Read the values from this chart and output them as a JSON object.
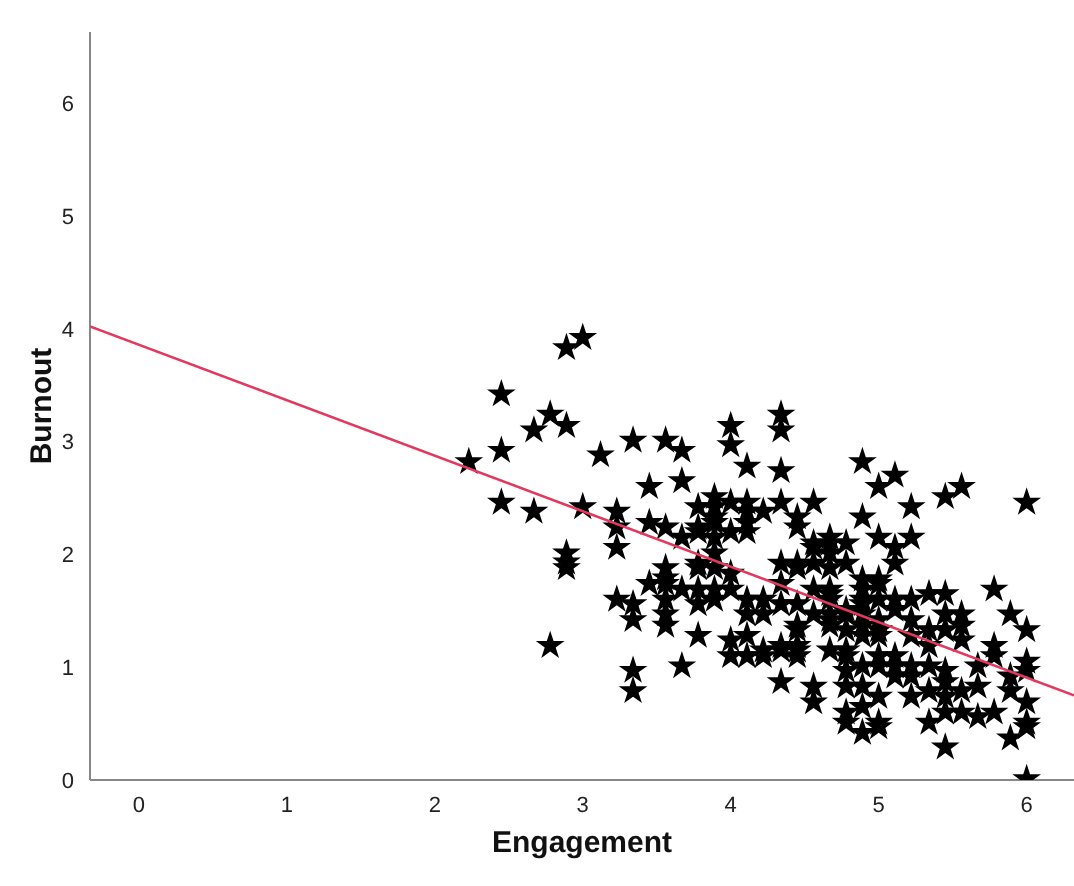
{
  "chart_data": {
    "type": "scatter",
    "xlabel": "Engagement",
    "ylabel": "Burnout",
    "xlim": [
      -0.33,
      6.32
    ],
    "ylim": [
      0,
      6.63
    ],
    "xticks": [
      0,
      1,
      2,
      3,
      4,
      5,
      6
    ],
    "yticks": [
      0,
      1,
      2,
      3,
      4,
      5,
      6
    ],
    "grid": false,
    "legend": false,
    "marker": "star",
    "series": [
      {
        "color": "#000000",
        "x": [
          2.23,
          2.45,
          2.45,
          2.45,
          2.67,
          2.67,
          2.78,
          2.78,
          2.89,
          2.89,
          2.89,
          2.89,
          2.89,
          3.0,
          3.0,
          3.12,
          3.23,
          3.23,
          3.23,
          3.23,
          3.34,
          3.34,
          3.34,
          3.34,
          3.34,
          3.45,
          3.45,
          3.45,
          3.56,
          3.56,
          3.56,
          3.56,
          3.56,
          3.56,
          3.56,
          3.56,
          3.67,
          3.67,
          3.67,
          3.67,
          3.67,
          3.78,
          3.78,
          3.78,
          3.78,
          3.78,
          3.78,
          3.78,
          3.78,
          3.89,
          3.89,
          3.89,
          3.89,
          3.89,
          3.89,
          3.89,
          3.89,
          3.89,
          4.0,
          4.0,
          4.0,
          4.0,
          4.0,
          4.0,
          4.0,
          4.0,
          4.11,
          4.11,
          4.11,
          4.11,
          4.11,
          4.11,
          4.11,
          4.11,
          4.11,
          4.22,
          4.22,
          4.22,
          4.22,
          4.22,
          4.34,
          4.34,
          4.34,
          4.34,
          4.34,
          4.34,
          4.34,
          4.34,
          4.34,
          4.34,
          4.45,
          4.45,
          4.45,
          4.45,
          4.45,
          4.45,
          4.45,
          4.45,
          4.45,
          4.45,
          4.56,
          4.56,
          4.56,
          4.56,
          4.56,
          4.56,
          4.56,
          4.56,
          4.67,
          4.67,
          4.67,
          4.67,
          4.67,
          4.67,
          4.67,
          4.67,
          4.67,
          4.67,
          4.67,
          4.78,
          4.78,
          4.78,
          4.78,
          4.78,
          4.78,
          4.78,
          4.78,
          4.78,
          4.78,
          4.78,
          4.89,
          4.89,
          4.89,
          4.89,
          4.89,
          4.89,
          4.89,
          4.89,
          4.89,
          4.89,
          4.89,
          4.89,
          4.89,
          5.0,
          5.0,
          5.0,
          5.0,
          5.0,
          5.0,
          5.0,
          5.0,
          5.0,
          5.0,
          5.0,
          5.0,
          5.0,
          5.11,
          5.11,
          5.11,
          5.11,
          5.11,
          5.11,
          5.11,
          5.11,
          5.22,
          5.22,
          5.22,
          5.22,
          5.22,
          5.22,
          5.22,
          5.22,
          5.34,
          5.34,
          5.34,
          5.34,
          5.34,
          5.34,
          5.45,
          5.45,
          5.45,
          5.45,
          5.45,
          5.45,
          5.45,
          5.45,
          5.45,
          5.56,
          5.56,
          5.56,
          5.56,
          5.56,
          5.56,
          5.67,
          5.67,
          5.67,
          5.78,
          5.78,
          5.78,
          5.78,
          5.89,
          5.89,
          5.89,
          5.89,
          6.0,
          6.0,
          6.0,
          6.0,
          6.0,
          6.0,
          6.0,
          6.0
        ],
        "values": [
          2.82,
          3.42,
          2.92,
          2.46,
          3.1,
          2.38,
          3.24,
          1.19,
          3.83,
          3.14,
          2.01,
          1.93,
          1.88,
          3.92,
          2.42,
          2.88,
          2.38,
          2.24,
          2.06,
          1.6,
          3.01,
          1.56,
          1.42,
          0.97,
          0.79,
          2.6,
          2.28,
          1.74,
          3.01,
          2.24,
          1.88,
          1.79,
          1.74,
          1.6,
          1.47,
          1.37,
          2.92,
          2.65,
          2.15,
          1.69,
          1.01,
          2.42,
          2.24,
          2.2,
          1.92,
          1.88,
          1.69,
          1.56,
          1.28,
          2.51,
          2.42,
          2.33,
          2.28,
          2.15,
          2.01,
          1.88,
          1.69,
          1.6,
          3.14,
          2.97,
          2.46,
          2.2,
          1.83,
          1.69,
          1.24,
          1.1,
          2.78,
          2.46,
          2.38,
          2.28,
          2.2,
          1.6,
          1.47,
          1.28,
          1.1,
          2.38,
          1.6,
          1.47,
          1.15,
          1.1,
          3.24,
          3.1,
          2.74,
          2.46,
          1.92,
          1.74,
          1.56,
          1.19,
          1.15,
          0.87,
          2.33,
          2.24,
          1.92,
          1.88,
          1.56,
          1.37,
          1.33,
          1.19,
          1.15,
          1.1,
          2.46,
          2.1,
          2.06,
          1.92,
          1.69,
          1.47,
          0.83,
          0.69,
          2.15,
          2.1,
          2.01,
          1.88,
          1.69,
          1.65,
          1.6,
          1.47,
          1.42,
          1.37,
          1.15,
          2.1,
          1.92,
          1.51,
          1.47,
          1.33,
          1.15,
          1.1,
          0.97,
          0.83,
          0.6,
          0.51,
          2.82,
          2.33,
          1.78,
          1.69,
          1.6,
          1.56,
          1.47,
          1.37,
          1.28,
          1.01,
          0.83,
          0.65,
          0.42,
          2.6,
          2.15,
          1.78,
          1.74,
          1.6,
          1.42,
          1.33,
          1.28,
          1.1,
          1.01,
          0.74,
          0.51,
          0.47,
          2.7,
          2.06,
          1.92,
          1.6,
          1.51,
          1.1,
          1.01,
          0.92,
          2.42,
          2.15,
          1.6,
          1.42,
          1.28,
          1.01,
          0.92,
          0.74,
          1.65,
          1.33,
          1.19,
          1.01,
          0.79,
          0.51,
          2.51,
          1.65,
          1.47,
          1.33,
          0.97,
          0.87,
          0.74,
          0.6,
          0.29,
          2.6,
          1.47,
          1.37,
          1.24,
          0.79,
          0.6,
          1.01,
          0.83,
          0.56,
          1.69,
          1.19,
          1.1,
          0.6,
          1.47,
          0.92,
          0.79,
          0.37,
          2.46,
          1.33,
          1.05,
          0.97,
          0.69,
          0.51,
          0.47,
          0.01
        ]
      },
      {
        "type": "line",
        "color": "#e03a5e",
        "line_style": "solid",
        "marker": "none",
        "x": [
          -0.33,
          6.32
        ],
        "values": [
          4.02,
          0.75
        ]
      }
    ]
  }
}
